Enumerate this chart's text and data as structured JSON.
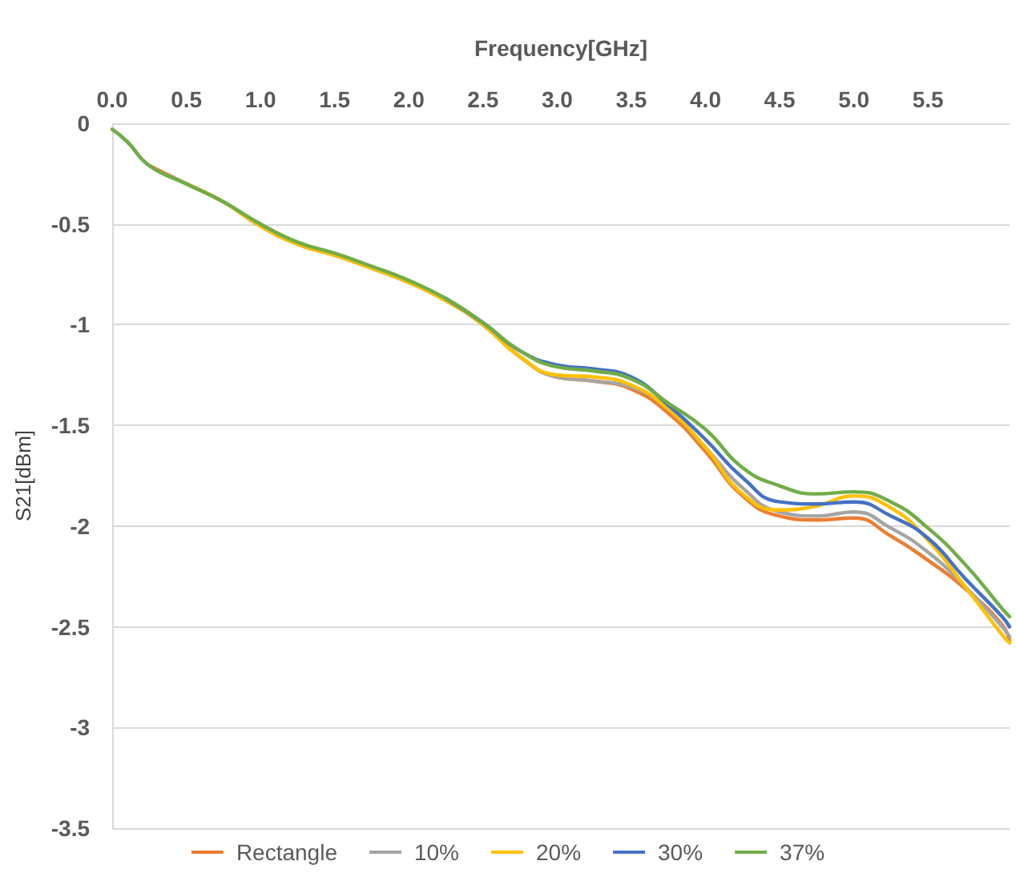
{
  "chart_data": {
    "type": "line",
    "xlabel": "Frequency[GHz]",
    "ylabel": "S21[dBm]",
    "x": [
      0,
      0.1,
      0.25,
      0.5,
      0.75,
      1.0,
      1.25,
      1.5,
      1.75,
      2.0,
      2.25,
      2.5,
      2.75,
      3.0,
      3.25,
      3.5,
      3.75,
      4.0,
      4.25,
      4.5,
      4.75,
      5.0,
      5.25,
      5.5,
      5.75,
      6.0,
      6.05
    ],
    "series": [
      {
        "name": "Rectangle",
        "color": "#ed7d31",
        "values": [
          null,
          null,
          -0.21,
          -0.3,
          -0.39,
          -0.51,
          -0.6,
          -0.655,
          -0.72,
          -0.79,
          -0.88,
          -1.0,
          -1.16,
          -1.26,
          -1.28,
          -1.32,
          -1.44,
          -1.63,
          -1.85,
          -1.95,
          -1.97,
          -1.96,
          -2.05,
          -2.17,
          -2.31,
          -2.49,
          -2.57
        ]
      },
      {
        "name": "10%",
        "color": "#a5a5a5",
        "values": [
          -0.03,
          -0.09,
          -0.21,
          -0.3,
          -0.39,
          -0.51,
          -0.6,
          -0.655,
          -0.72,
          -0.79,
          -0.88,
          -1.0,
          -1.16,
          -1.26,
          -1.28,
          -1.31,
          -1.42,
          -1.61,
          -1.81,
          -1.93,
          -1.95,
          -1.93,
          -2.01,
          -2.13,
          -2.3,
          -2.5,
          -2.55
        ]
      },
      {
        "name": "20%",
        "color": "#ffc000",
        "values": [
          null,
          null,
          null,
          -0.3,
          -0.39,
          -0.51,
          -0.6,
          -0.655,
          -0.72,
          -0.79,
          -0.88,
          -1.0,
          -1.16,
          -1.25,
          -1.26,
          -1.3,
          -1.42,
          -1.61,
          -1.84,
          -1.92,
          -1.9,
          -1.85,
          -1.91,
          -2.07,
          -2.3,
          -2.54,
          -2.58
        ]
      },
      {
        "name": "30%",
        "color": "#4472c4",
        "values": [
          null,
          null,
          null,
          null,
          null,
          null,
          null,
          null,
          null,
          null,
          -0.87,
          -0.99,
          -1.13,
          -1.2,
          -1.22,
          -1.26,
          -1.4,
          -1.57,
          -1.76,
          -1.88,
          -1.89,
          -1.88,
          -1.95,
          -2.06,
          -2.26,
          -2.45,
          -2.5
        ]
      },
      {
        "name": "37%",
        "color": "#70ad47",
        "values": [
          -0.03,
          -0.09,
          -0.21,
          -0.3,
          -0.39,
          -0.5,
          -0.59,
          -0.645,
          -0.71,
          -0.78,
          -0.87,
          -0.99,
          -1.13,
          -1.21,
          -1.23,
          -1.27,
          -1.39,
          -1.52,
          -1.71,
          -1.8,
          -1.84,
          -1.83,
          -1.88,
          -2.01,
          -2.19,
          -2.41,
          -2.45
        ]
      }
    ],
    "xlim": [
      0,
      6.05
    ],
    "xticks": [
      {
        "value": 0,
        "label": "0.0"
      },
      {
        "value": 0.5,
        "label": "0.5"
      },
      {
        "value": 1,
        "label": "1.0"
      },
      {
        "value": 1.5,
        "label": "1.5"
      },
      {
        "value": 2,
        "label": "2.0"
      },
      {
        "value": 2.5,
        "label": "2.5"
      },
      {
        "value": 3,
        "label": "3.0"
      },
      {
        "value": 3.5,
        "label": "3.5"
      },
      {
        "value": 4,
        "label": "4.0"
      },
      {
        "value": 4.5,
        "label": "4.5"
      },
      {
        "value": 5,
        "label": "5.0"
      },
      {
        "value": 5.5,
        "label": "5.5"
      }
    ],
    "ylim": [
      -3.5,
      0
    ],
    "yticks": [
      0,
      -0.5,
      -1,
      -1.5,
      -2,
      -2.5,
      -3,
      -3.5
    ],
    "grid": "y",
    "legend": "bottom",
    "marker": "none",
    "line_style": "solid"
  }
}
